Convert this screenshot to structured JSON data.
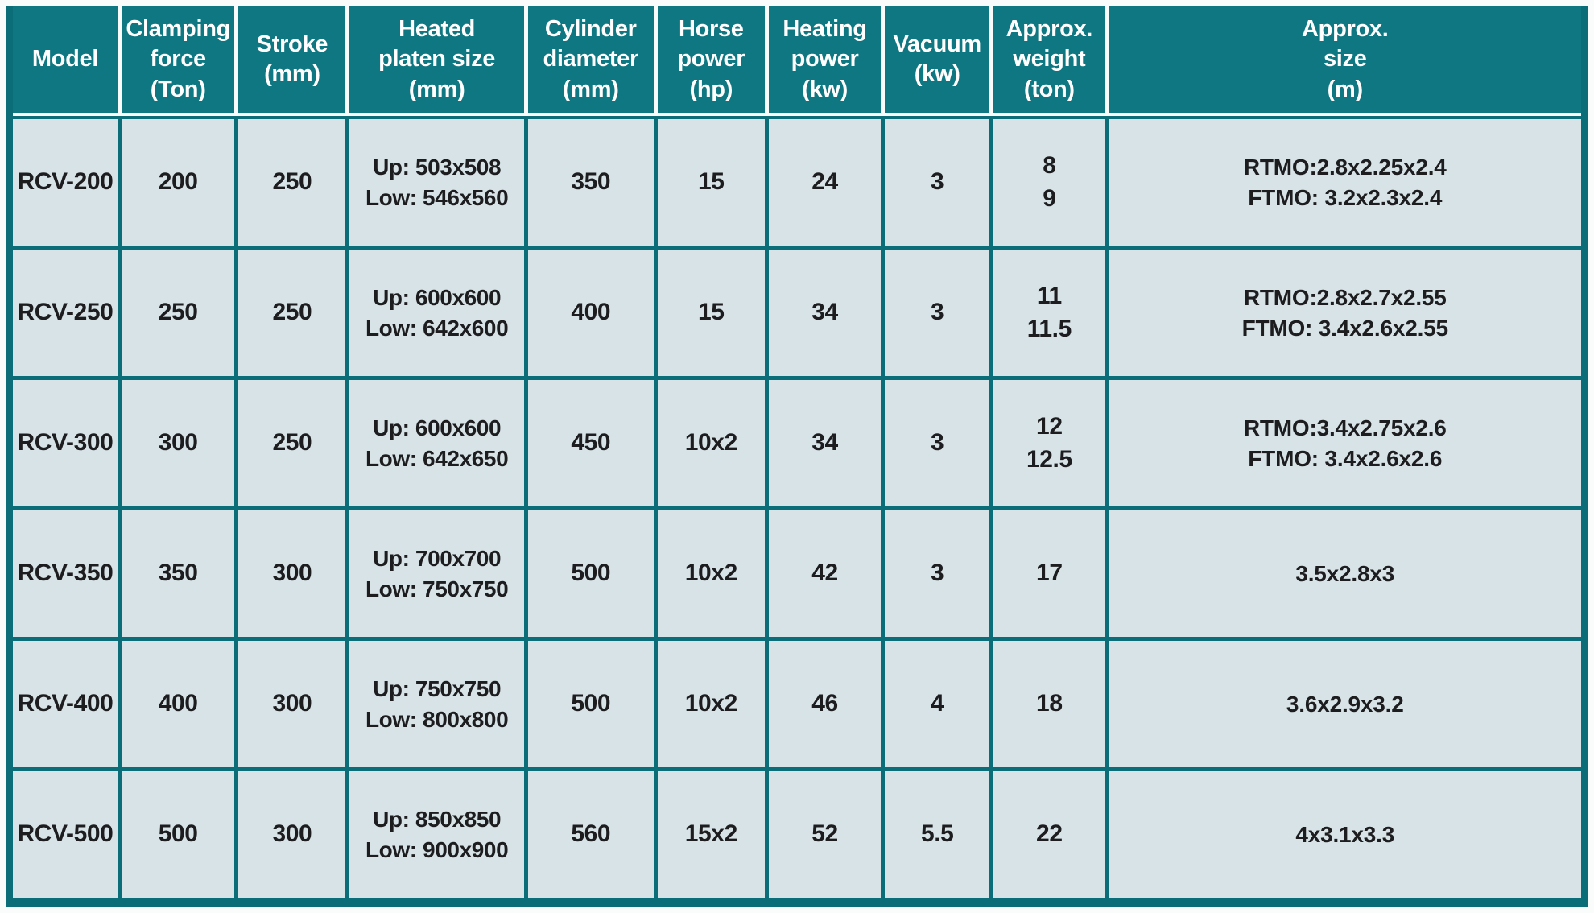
{
  "colors": {
    "header_bg": "#0e7781",
    "grid_teal": "#0b6d77",
    "row_bg": "#d7e3e7",
    "header_text": "#ffffff",
    "body_text": "#1d1d1f",
    "page_bg": "#fafbfb"
  },
  "table": {
    "columns": [
      {
        "id": "model",
        "label": "Model"
      },
      {
        "id": "clamping",
        "label": "Clamping\nforce\n(Ton)"
      },
      {
        "id": "stroke",
        "label": "Stroke\n(mm)"
      },
      {
        "id": "platen",
        "label": "Heated\nplaten size\n(mm)"
      },
      {
        "id": "cylinder",
        "label": "Cylinder\ndiameter\n(mm)"
      },
      {
        "id": "horse",
        "label": "Horse\npower\n(hp)"
      },
      {
        "id": "heating",
        "label": "Heating\npower\n(kw)"
      },
      {
        "id": "vacuum",
        "label": "Vacuum\n(kw)"
      },
      {
        "id": "weight",
        "label": "Approx.\nweight\n(ton)"
      },
      {
        "id": "size",
        "label": "Approx.\nsize\n(m)"
      }
    ],
    "rows": [
      {
        "model": "RCV-200",
        "clamping": "200",
        "stroke": "250",
        "platen": "Up: 503x508\nLow: 546x560",
        "cylinder": "350",
        "horse": "15",
        "heating": "24",
        "vacuum": "3",
        "weight": "8\n9",
        "size": "RTMO:2.8x2.25x2.4\nFTMO: 3.2x2.3x2.4"
      },
      {
        "model": "RCV-250",
        "clamping": "250",
        "stroke": "250",
        "platen": "Up: 600x600\nLow: 642x600",
        "cylinder": "400",
        "horse": "15",
        "heating": "34",
        "vacuum": "3",
        "weight": "11\n11.5",
        "size": "RTMO:2.8x2.7x2.55\nFTMO: 3.4x2.6x2.55"
      },
      {
        "model": "RCV-300",
        "clamping": "300",
        "stroke": "250",
        "platen": "Up: 600x600\nLow: 642x650",
        "cylinder": "450",
        "horse": "10x2",
        "heating": "34",
        "vacuum": "3",
        "weight": "12\n12.5",
        "size": "RTMO:3.4x2.75x2.6\nFTMO: 3.4x2.6x2.6"
      },
      {
        "model": "RCV-350",
        "clamping": "350",
        "stroke": "300",
        "platen": "Up: 700x700\nLow: 750x750",
        "cylinder": "500",
        "horse": "10x2",
        "heating": "42",
        "vacuum": "3",
        "weight": "17",
        "size": "3.5x2.8x3"
      },
      {
        "model": "RCV-400",
        "clamping": "400",
        "stroke": "300",
        "platen": "Up: 750x750\nLow: 800x800",
        "cylinder": "500",
        "horse": "10x2",
        "heating": "46",
        "vacuum": "4",
        "weight": "18",
        "size": "3.6x2.9x3.2"
      },
      {
        "model": "RCV-500",
        "clamping": "500",
        "stroke": "300",
        "platen": "Up: 850x850\nLow: 900x900",
        "cylinder": "560",
        "horse": "15x2",
        "heating": "52",
        "vacuum": "5.5",
        "weight": "22",
        "size": "4x3.1x3.3"
      }
    ]
  }
}
